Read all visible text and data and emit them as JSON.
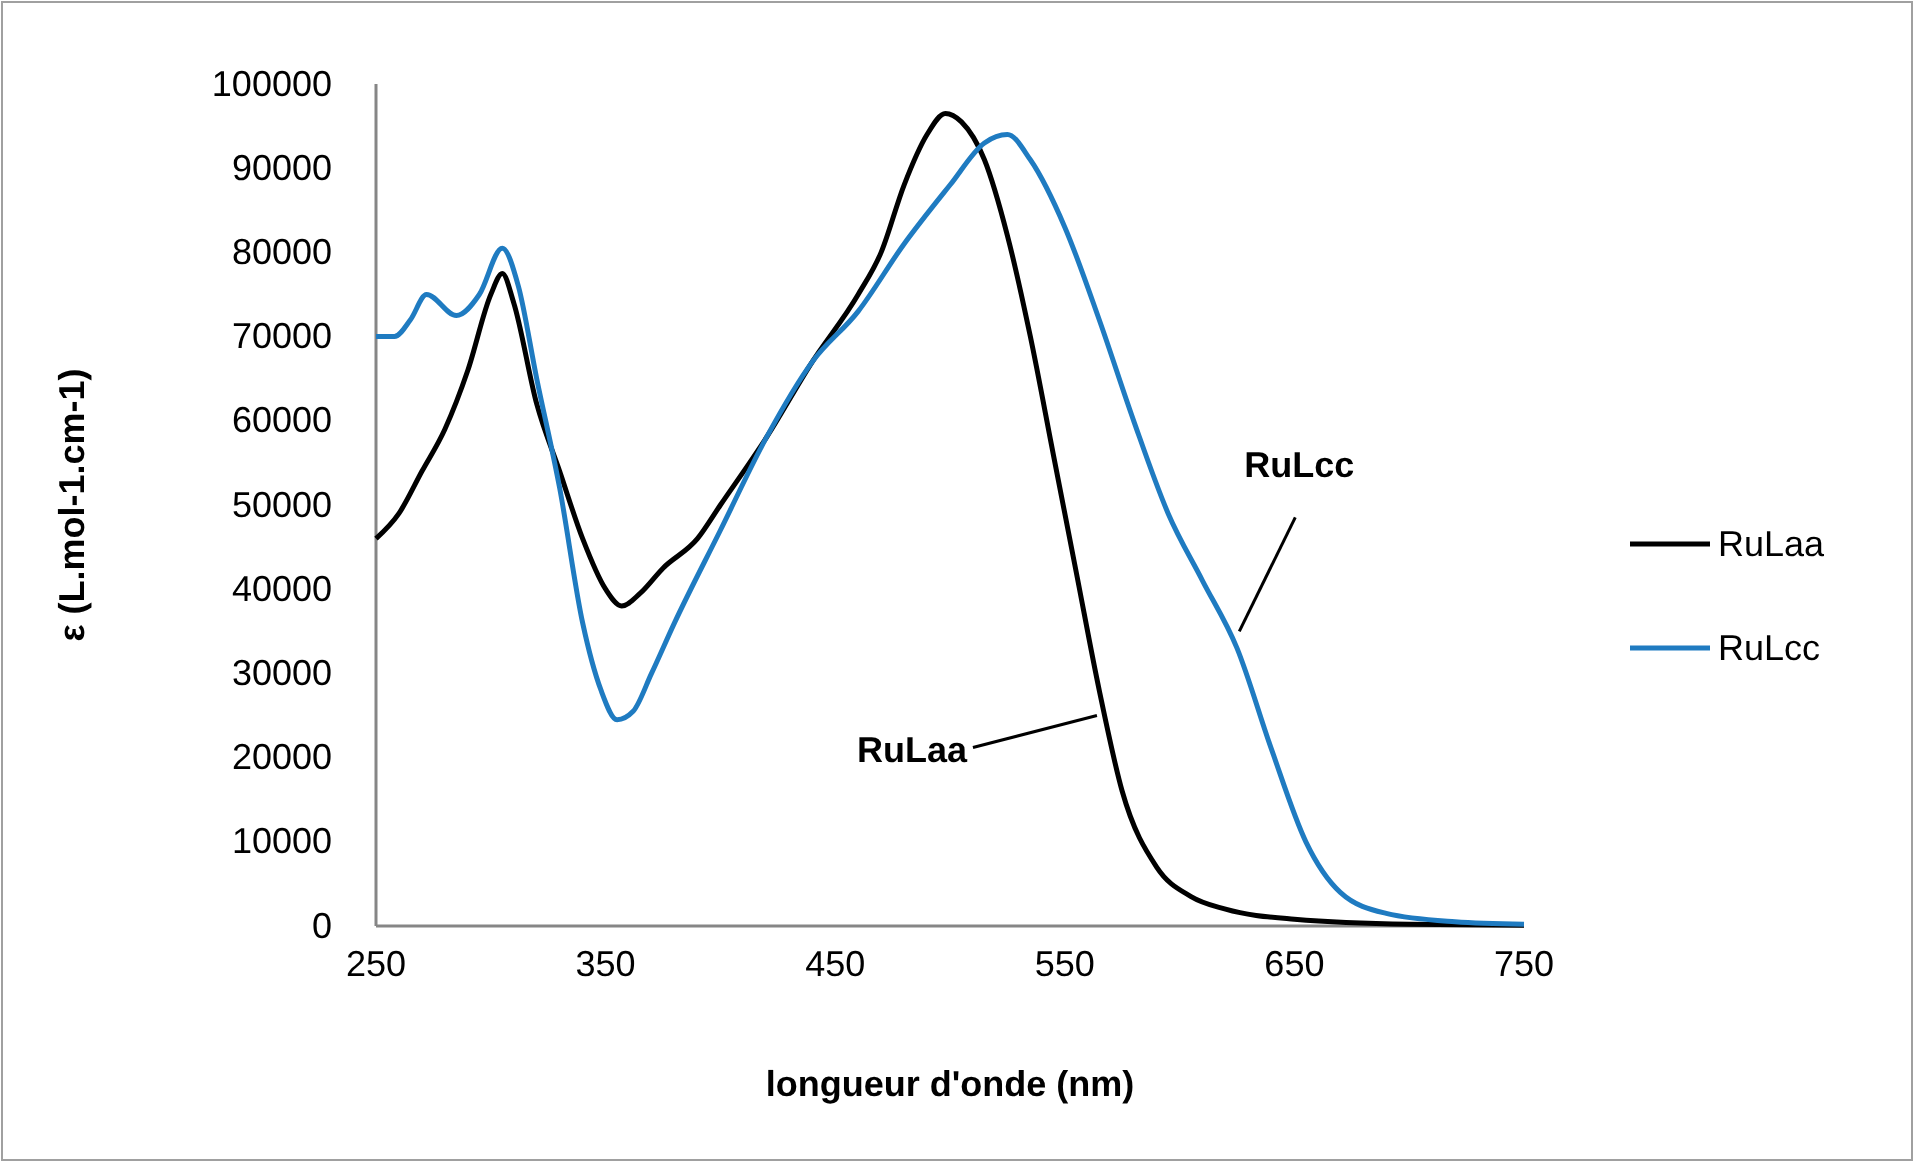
{
  "chart_data": {
    "type": "line",
    "xlabel": "longueur d'onde (nm)",
    "ylabel": "ε (L.mol-1.cm-1)",
    "xlim": [
      250,
      750
    ],
    "xticks": [
      250,
      350,
      450,
      550,
      650,
      750
    ],
    "ylim": [
      0,
      100000
    ],
    "yticks": [
      0,
      10000,
      20000,
      30000,
      40000,
      50000,
      60000,
      70000,
      80000,
      90000,
      100000
    ],
    "grid": false,
    "legend": "right",
    "marker": "none",
    "line_style": "solid",
    "series": [
      {
        "name": "RuLaa",
        "color": "#000000",
        "x": [
          250,
          260,
          270,
          280,
          290,
          300,
          305,
          310,
          320,
          330,
          340,
          350,
          357,
          365,
          375,
          390,
          400,
          420,
          440,
          460,
          470,
          480,
          490,
          498,
          505,
          515,
          525,
          535,
          545,
          555,
          565,
          575,
          590,
          605,
          620,
          650,
          700,
          750
        ],
        "values": [
          46000,
          49000,
          54000,
          59000,
          66000,
          75000,
          77500,
          74000,
          62000,
          54000,
          46000,
          40000,
          38000,
          39500,
          42500,
          46000,
          50000,
          58000,
          67000,
          75000,
          80000,
          88000,
          94000,
          96500,
          95500,
          91000,
          82000,
          70000,
          56000,
          42000,
          28000,
          16000,
          7000,
          3500,
          2000,
          800,
          200,
          100
        ]
      },
      {
        "name": "RuLcc",
        "color": "#1f7bc1",
        "x": [
          250,
          258,
          265,
          272,
          285,
          295,
          305,
          312,
          320,
          330,
          340,
          348,
          355,
          362,
          370,
          380,
          400,
          420,
          440,
          460,
          480,
          500,
          515,
          525,
          535,
          550,
          565,
          580,
          595,
          610,
          625,
          640,
          655,
          670,
          690,
          720,
          750
        ],
        "values": [
          70000,
          70000,
          72000,
          75000,
          72500,
          75000,
          80500,
          76000,
          65000,
          52000,
          36000,
          28000,
          24500,
          25500,
          30000,
          36000,
          47000,
          58000,
          67000,
          73000,
          81000,
          88000,
          93000,
          94000,
          91000,
          83000,
          72000,
          60000,
          49000,
          41000,
          33000,
          21000,
          10000,
          4000,
          1500,
          500,
          200
        ]
      }
    ],
    "annotations": [
      {
        "text": "RuLaa",
        "x": 564,
        "y": 25000
      },
      {
        "text": "RuLcc",
        "x": 626,
        "y": 35000
      }
    ]
  }
}
